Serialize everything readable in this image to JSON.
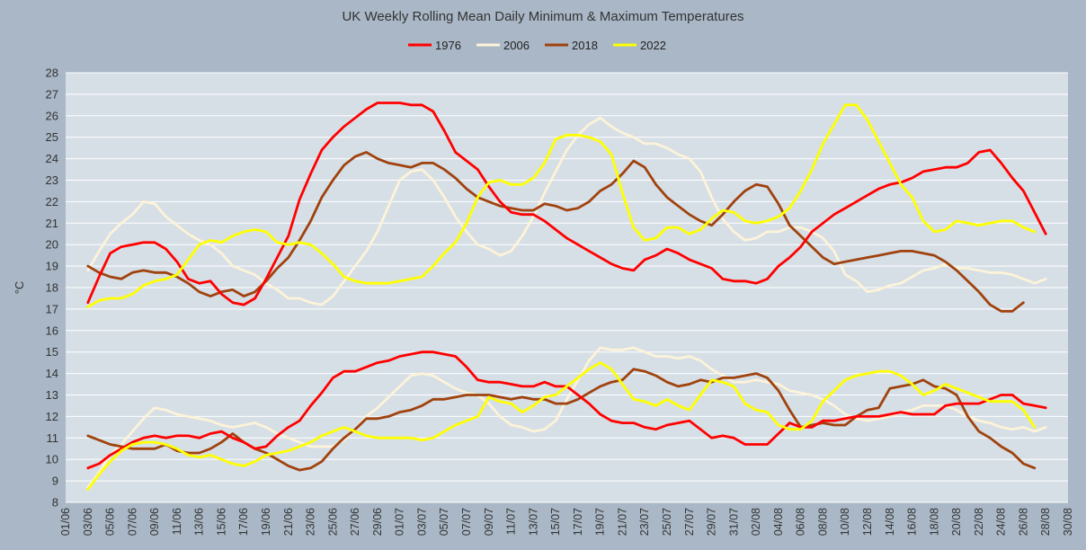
{
  "chart_data": {
    "type": "line",
    "title": "UK Weekly Rolling Mean Daily Minimum & Maximum Temperatures",
    "xlabel": "",
    "ylabel": "°C",
    "ylim": [
      8,
      28
    ],
    "grid": true,
    "legend_position": "top",
    "x_ticks": [
      "01/06",
      "03/06",
      "05/06",
      "07/06",
      "09/06",
      "11/06",
      "13/06",
      "15/06",
      "17/06",
      "19/06",
      "21/06",
      "23/06",
      "25/06",
      "27/06",
      "29/06",
      "01/07",
      "03/07",
      "05/07",
      "07/07",
      "09/07",
      "11/07",
      "13/07",
      "15/07",
      "17/07",
      "19/07",
      "21/07",
      "23/07",
      "25/07",
      "27/07",
      "29/07",
      "31/07",
      "02/08",
      "04/08",
      "06/08",
      "08/08",
      "10/08",
      "12/08",
      "14/08",
      "16/08",
      "18/08",
      "20/08",
      "22/08",
      "24/08",
      "26/08",
      "28/08",
      "30/08"
    ],
    "x_start": "01/06",
    "series": [
      {
        "name": "1976",
        "color": "#ff0000",
        "group": "max",
        "x_from": 3,
        "step": 1,
        "values": [
          17.3,
          18.5,
          19.6,
          19.9,
          20.0,
          20.1,
          20.1,
          19.8,
          19.2,
          18.4,
          18.2,
          18.3,
          17.7,
          17.3,
          17.2,
          17.5,
          18.4,
          19.4,
          20.4,
          22.1,
          23.3,
          24.4,
          25.0,
          25.5,
          25.9,
          26.3,
          26.6,
          26.6,
          26.6,
          26.5,
          26.5,
          26.2,
          25.3,
          24.3,
          23.9,
          23.5,
          22.7,
          22.0,
          21.5,
          21.4,
          21.4,
          21.1,
          20.7,
          20.3,
          20.0,
          19.7,
          19.4,
          19.1,
          18.9,
          18.8,
          19.3,
          19.5,
          19.8,
          19.6,
          19.3,
          19.1,
          18.9,
          18.4,
          18.3,
          18.3,
          18.2,
          18.4,
          19.0,
          19.4,
          19.9,
          20.6,
          21.0,
          21.4,
          21.7,
          22.0,
          22.3,
          22.6,
          22.8,
          22.9,
          23.1,
          23.4,
          23.5,
          23.6,
          23.6,
          23.8,
          24.3,
          24.4,
          23.8,
          23.1,
          22.5,
          21.5,
          20.5
        ]
      },
      {
        "name": "1976",
        "color": "#ff0000",
        "group": "min",
        "x_from": 3,
        "step": 1,
        "values": [
          9.6,
          9.8,
          10.2,
          10.5,
          10.8,
          11.0,
          11.1,
          11.0,
          11.1,
          11.1,
          11.0,
          11.2,
          11.3,
          11.0,
          10.8,
          10.5,
          10.6,
          11.1,
          11.5,
          11.8,
          12.5,
          13.1,
          13.8,
          14.1,
          14.1,
          14.3,
          14.5,
          14.6,
          14.8,
          14.9,
          15.0,
          15.0,
          14.9,
          14.8,
          14.3,
          13.7,
          13.6,
          13.6,
          13.5,
          13.4,
          13.4,
          13.6,
          13.4,
          13.4,
          13.0,
          12.6,
          12.1,
          11.8,
          11.7,
          11.7,
          11.5,
          11.4,
          11.6,
          11.7,
          11.8,
          11.4,
          11.0,
          11.1,
          11.0,
          10.7,
          10.7,
          10.7,
          11.2,
          11.7,
          11.5,
          11.5,
          11.8,
          11.8,
          11.9,
          12.0,
          12.0,
          12.0,
          12.1,
          12.2,
          12.1,
          12.1,
          12.1,
          12.5,
          12.6,
          12.6,
          12.6,
          12.8,
          13.0,
          13.0,
          12.6,
          12.5,
          12.4
        ]
      },
      {
        "name": "2006",
        "color": "#fdf3d9",
        "group": "max",
        "x_from": 3,
        "step": 1,
        "values": [
          18.8,
          19.7,
          20.5,
          21.0,
          21.4,
          22.0,
          21.9,
          21.3,
          20.9,
          20.5,
          20.2,
          20.0,
          19.6,
          19.0,
          18.8,
          18.6,
          18.2,
          17.9,
          17.5,
          17.5,
          17.3,
          17.2,
          17.6,
          18.3,
          19.0,
          19.7,
          20.6,
          21.8,
          23.0,
          23.4,
          23.5,
          23.0,
          22.2,
          21.3,
          20.6,
          20.0,
          19.8,
          19.5,
          19.7,
          20.4,
          21.3,
          22.4,
          23.4,
          24.4,
          25.1,
          25.6,
          25.9,
          25.5,
          25.2,
          25.0,
          24.7,
          24.7,
          24.5,
          24.2,
          24.0,
          23.4,
          22.2,
          21.2,
          20.6,
          20.2,
          20.3,
          20.6,
          20.6,
          20.8,
          20.8,
          20.6,
          20.3,
          19.7,
          18.6,
          18.3,
          17.8,
          17.9,
          18.1,
          18.2,
          18.5,
          18.8,
          18.9,
          19.1,
          18.9,
          18.9,
          18.8,
          18.7,
          18.7,
          18.6,
          18.4,
          18.2,
          18.4
        ]
      },
      {
        "name": "2006",
        "color": "#fdf3d9",
        "group": "min",
        "x_from": 3,
        "step": 1,
        "values": [
          8.7,
          9.4,
          10.2,
          10.7,
          11.3,
          11.9,
          12.4,
          12.3,
          12.1,
          12.0,
          11.9,
          11.8,
          11.6,
          11.5,
          11.6,
          11.7,
          11.5,
          11.2,
          11.0,
          10.8,
          10.6,
          10.6,
          10.6,
          10.9,
          11.4,
          12.0,
          12.4,
          12.9,
          13.4,
          13.9,
          14.0,
          13.9,
          13.6,
          13.3,
          13.1,
          13.0,
          12.6,
          12.0,
          11.6,
          11.5,
          11.3,
          11.4,
          11.8,
          12.8,
          13.7,
          14.6,
          15.2,
          15.1,
          15.1,
          15.2,
          15.0,
          14.8,
          14.8,
          14.7,
          14.8,
          14.6,
          14.2,
          13.9,
          13.6,
          13.6,
          13.7,
          13.6,
          13.5,
          13.2,
          13.1,
          13.0,
          12.8,
          12.5,
          12.1,
          11.9,
          11.8,
          11.9,
          12.0,
          12.2,
          12.3,
          12.5,
          12.5,
          12.5,
          12.3,
          12.0,
          11.8,
          11.7,
          11.5,
          11.4,
          11.5,
          11.3,
          11.5
        ]
      },
      {
        "name": "2018",
        "color": "#a0420e",
        "group": "max",
        "x_from": 3,
        "step": 1,
        "values": [
          19.0,
          18.7,
          18.5,
          18.4,
          18.7,
          18.8,
          18.7,
          18.7,
          18.5,
          18.2,
          17.8,
          17.6,
          17.8,
          17.9,
          17.6,
          17.8,
          18.3,
          18.9,
          19.4,
          20.2,
          21.1,
          22.2,
          23.0,
          23.7,
          24.1,
          24.3,
          24.0,
          23.8,
          23.7,
          23.6,
          23.8,
          23.8,
          23.5,
          23.1,
          22.6,
          22.2,
          22.0,
          21.8,
          21.7,
          21.6,
          21.6,
          21.9,
          21.8,
          21.6,
          21.7,
          22.0,
          22.5,
          22.8,
          23.3,
          23.9,
          23.6,
          22.8,
          22.2,
          21.8,
          21.4,
          21.1,
          20.9,
          21.4,
          22.0,
          22.5,
          22.8,
          22.7,
          21.9,
          20.9,
          20.4,
          19.9,
          19.4,
          19.1,
          19.2,
          19.3,
          19.4,
          19.5,
          19.6,
          19.7,
          19.7,
          19.6,
          19.5,
          19.2,
          18.8,
          18.3,
          17.8,
          17.2,
          16.9,
          16.9,
          17.3
        ]
      },
      {
        "name": "2018",
        "color": "#a0420e",
        "group": "min",
        "x_from": 3,
        "step": 1,
        "values": [
          11.1,
          10.9,
          10.7,
          10.6,
          10.5,
          10.5,
          10.5,
          10.7,
          10.4,
          10.3,
          10.3,
          10.5,
          10.8,
          11.2,
          10.8,
          10.5,
          10.3,
          10.0,
          9.7,
          9.5,
          9.6,
          9.9,
          10.5,
          11.0,
          11.4,
          11.9,
          11.9,
          12.0,
          12.2,
          12.3,
          12.5,
          12.8,
          12.8,
          12.9,
          13.0,
          13.0,
          13.0,
          12.9,
          12.8,
          12.9,
          12.8,
          12.8,
          12.6,
          12.6,
          12.8,
          13.1,
          13.4,
          13.6,
          13.7,
          14.2,
          14.1,
          13.9,
          13.6,
          13.4,
          13.5,
          13.7,
          13.6,
          13.8,
          13.8,
          13.9,
          14.0,
          13.8,
          13.2,
          12.3,
          11.5,
          11.6,
          11.7,
          11.6,
          11.6,
          12.0,
          12.3,
          12.4,
          13.3,
          13.4,
          13.5,
          13.7,
          13.4,
          13.3,
          13.0,
          12.0,
          11.3,
          11.0,
          10.6,
          10.3,
          9.8,
          9.6
        ]
      },
      {
        "name": "2022",
        "color": "#ffff00",
        "group": "max",
        "x_from": 3,
        "step": 1,
        "values": [
          17.1,
          17.4,
          17.5,
          17.5,
          17.7,
          18.1,
          18.3,
          18.4,
          18.6,
          19.3,
          20.0,
          20.2,
          20.1,
          20.4,
          20.6,
          20.7,
          20.6,
          20.1,
          20.0,
          20.1,
          20.0,
          19.6,
          19.1,
          18.5,
          18.3,
          18.2,
          18.2,
          18.2,
          18.3,
          18.4,
          18.5,
          19.0,
          19.6,
          20.1,
          21.0,
          22.2,
          22.9,
          23.0,
          22.8,
          22.8,
          23.1,
          23.8,
          24.9,
          25.1,
          25.1,
          25.0,
          24.8,
          24.2,
          22.4,
          20.8,
          20.2,
          20.3,
          20.8,
          20.8,
          20.5,
          20.7,
          21.2,
          21.6,
          21.5,
          21.1,
          21.0,
          21.1,
          21.3,
          21.7,
          22.5,
          23.5,
          24.7,
          25.6,
          26.5,
          26.5,
          25.8,
          24.8,
          23.8,
          22.8,
          22.2,
          21.1,
          20.6,
          20.7,
          21.1,
          21.0,
          20.9,
          21.0,
          21.1,
          21.1,
          20.8,
          20.6
        ]
      },
      {
        "name": "2022",
        "color": "#ffff00",
        "group": "min",
        "x_from": 3,
        "step": 1,
        "values": [
          8.6,
          9.3,
          9.9,
          10.4,
          10.7,
          10.8,
          10.8,
          10.7,
          10.5,
          10.2,
          10.1,
          10.2,
          10.0,
          9.8,
          9.7,
          9.9,
          10.2,
          10.3,
          10.4,
          10.6,
          10.8,
          11.1,
          11.3,
          11.5,
          11.3,
          11.1,
          11.0,
          11.0,
          11.0,
          11.0,
          10.9,
          11.0,
          11.3,
          11.6,
          11.8,
          12.0,
          12.9,
          12.7,
          12.6,
          12.2,
          12.5,
          12.9,
          13.0,
          13.4,
          13.8,
          14.2,
          14.5,
          14.2,
          13.5,
          12.8,
          12.7,
          12.5,
          12.8,
          12.5,
          12.3,
          13.0,
          13.7,
          13.6,
          13.4,
          12.6,
          12.3,
          12.2,
          11.6,
          11.4,
          11.4,
          11.8,
          12.7,
          13.2,
          13.7,
          13.9,
          14.0,
          14.1,
          14.1,
          13.9,
          13.5,
          13.0,
          13.2,
          13.5,
          13.3,
          13.1,
          12.9,
          12.7,
          12.7,
          12.7,
          12.3,
          11.5
        ]
      }
    ],
    "legend": [
      {
        "label": "1976",
        "color": "#ff0000"
      },
      {
        "label": "2006",
        "color": "#fdf3d9"
      },
      {
        "label": "2018",
        "color": "#a0420e"
      },
      {
        "label": "2022",
        "color": "#ffff00"
      }
    ],
    "plot_background": "#d6dfe6",
    "page_background": "#a9b7c6"
  }
}
